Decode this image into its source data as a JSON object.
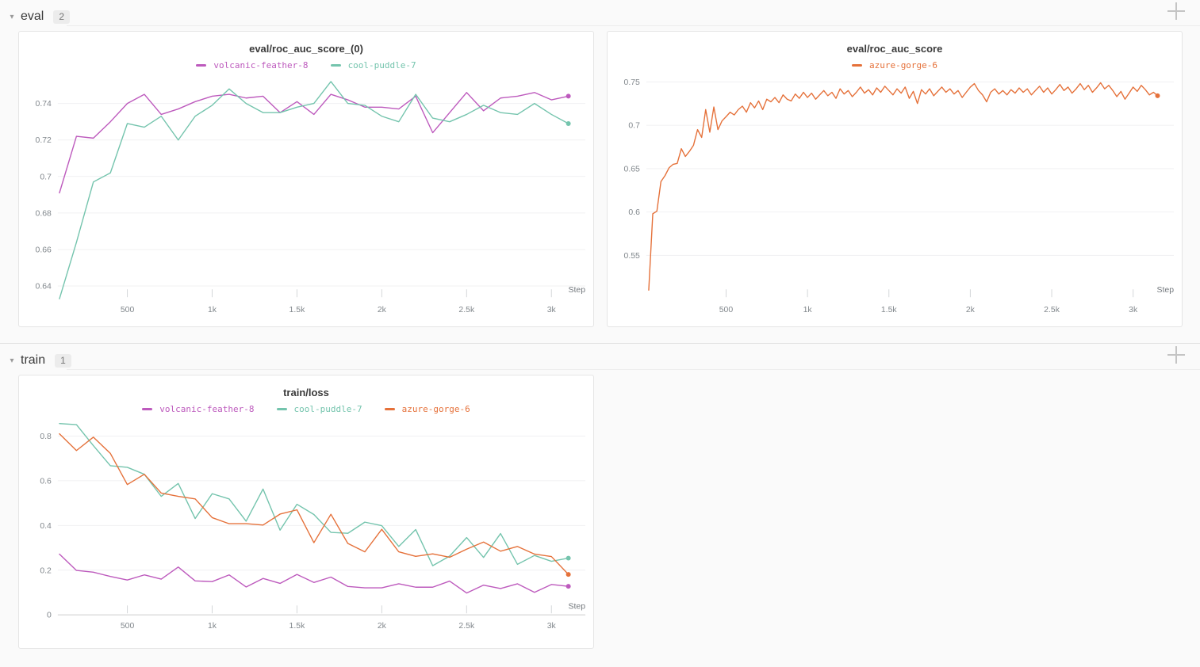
{
  "page": {
    "background": "#fafafa"
  },
  "sections": [
    {
      "id": "eval",
      "label": "eval",
      "count": "2",
      "chevron_icon": "chevron-down",
      "add_icon": "plus"
    },
    {
      "id": "train",
      "label": "train",
      "count": "1",
      "chevron_icon": "chevron-down",
      "add_icon": "plus"
    }
  ],
  "colors": {
    "volcanic_feather_8": "#bd5abd",
    "cool_puddle_7": "#74c4ad",
    "azure_gorge_6": "#e5713a",
    "grid": "#f1f1f2",
    "zero_line": "#dedede",
    "tick": "#d4d7d9",
    "axis_text": "#81878c"
  },
  "chart_data": [
    {
      "type": "line",
      "section": "eval",
      "title": "eval/roc_auc_score_(0)",
      "xlabel": "Step",
      "grid": "horizontal",
      "legend_position": "top",
      "x_axis": {
        "lim": [
          90,
          3200
        ],
        "ticks": [
          500,
          1000,
          1500,
          2000,
          2500,
          3000
        ],
        "tick_labels": [
          "500",
          "1k",
          "1.5k",
          "2k",
          "2.5k",
          "3k"
        ]
      },
      "y_axis": {
        "lim": [
          0.633,
          0.753
        ],
        "ticks": [
          0.64,
          0.66,
          0.68,
          0.7,
          0.72,
          0.74
        ],
        "tick_labels": [
          "0.64",
          "0.66",
          "0.68",
          "0.7",
          "0.72",
          "0.74"
        ]
      },
      "x": [
        100,
        200,
        300,
        400,
        500,
        600,
        700,
        800,
        900,
        1000,
        1100,
        1200,
        1300,
        1400,
        1500,
        1600,
        1700,
        1800,
        1900,
        2000,
        2100,
        2200,
        2300,
        2400,
        2500,
        2600,
        2700,
        2800,
        2900,
        3000,
        3100
      ],
      "series": [
        {
          "name": "volcanic-feather-8",
          "color": "#bd5abd",
          "values": [
            0.691,
            0.722,
            0.721,
            0.73,
            0.74,
            0.745,
            0.734,
            0.737,
            0.741,
            0.744,
            0.745,
            0.743,
            0.744,
            0.735,
            0.741,
            0.734,
            0.745,
            0.742,
            0.738,
            0.738,
            0.737,
            0.744,
            0.724,
            0.735,
            0.746,
            0.736,
            0.743,
            0.744,
            0.746,
            0.742,
            0.744
          ]
        },
        {
          "name": "cool-puddle-7",
          "color": "#74c4ad",
          "values": [
            0.633,
            0.664,
            0.697,
            0.702,
            0.729,
            0.727,
            0.733,
            0.72,
            0.733,
            0.739,
            0.748,
            0.74,
            0.735,
            0.735,
            0.738,
            0.74,
            0.752,
            0.74,
            0.739,
            0.733,
            0.73,
            0.745,
            0.732,
            0.73,
            0.734,
            0.739,
            0.735,
            0.734,
            0.74,
            0.734,
            0.729
          ]
        }
      ]
    },
    {
      "type": "line",
      "section": "eval",
      "title": "eval/roc_auc_score",
      "xlabel": "Step",
      "grid": "horizontal",
      "legend_position": "top",
      "x_axis": {
        "lim": [
          10,
          3250
        ],
        "ticks": [
          500,
          1000,
          1500,
          2000,
          2500,
          3000
        ],
        "tick_labels": [
          "500",
          "1k",
          "1.5k",
          "2k",
          "2.5k",
          "3k"
        ]
      },
      "y_axis": {
        "lim": [
          0.5,
          0.757
        ],
        "ticks": [
          0.55,
          0.6,
          0.65,
          0.7,
          0.75
        ],
        "tick_labels": [
          "0.55",
          "0.6",
          "0.65",
          "0.7",
          "0.75"
        ]
      },
      "x": [
        25,
        50,
        75,
        100,
        125,
        150,
        175,
        200,
        225,
        250,
        275,
        300,
        325,
        350,
        375,
        400,
        425,
        450,
        475,
        500,
        525,
        550,
        575,
        600,
        625,
        650,
        675,
        700,
        725,
        750,
        775,
        800,
        825,
        850,
        875,
        900,
        925,
        950,
        975,
        1000,
        1025,
        1050,
        1075,
        1100,
        1125,
        1150,
        1175,
        1200,
        1225,
        1250,
        1275,
        1300,
        1325,
        1350,
        1375,
        1400,
        1425,
        1450,
        1475,
        1500,
        1525,
        1550,
        1575,
        1600,
        1625,
        1650,
        1675,
        1700,
        1725,
        1750,
        1775,
        1800,
        1825,
        1850,
        1875,
        1900,
        1925,
        1950,
        1975,
        2000,
        2025,
        2050,
        2075,
        2100,
        2125,
        2150,
        2175,
        2200,
        2225,
        2250,
        2275,
        2300,
        2325,
        2350,
        2375,
        2400,
        2425,
        2450,
        2475,
        2500,
        2525,
        2550,
        2575,
        2600,
        2625,
        2650,
        2675,
        2700,
        2725,
        2750,
        2775,
        2800,
        2825,
        2850,
        2875,
        2900,
        2925,
        2950,
        2975,
        3000,
        3025,
        3050,
        3075,
        3100,
        3125,
        3150
      ],
      "series": [
        {
          "name": "azure-gorge-6",
          "color": "#e5713a",
          "values": [
            0.51,
            0.598,
            0.601,
            0.635,
            0.642,
            0.651,
            0.655,
            0.656,
            0.673,
            0.664,
            0.67,
            0.677,
            0.695,
            0.686,
            0.718,
            0.692,
            0.721,
            0.695,
            0.705,
            0.71,
            0.715,
            0.712,
            0.718,
            0.722,
            0.715,
            0.726,
            0.72,
            0.728,
            0.718,
            0.73,
            0.727,
            0.732,
            0.726,
            0.735,
            0.73,
            0.728,
            0.736,
            0.731,
            0.738,
            0.732,
            0.737,
            0.73,
            0.735,
            0.74,
            0.734,
            0.738,
            0.731,
            0.742,
            0.736,
            0.74,
            0.733,
            0.738,
            0.744,
            0.737,
            0.741,
            0.735,
            0.743,
            0.738,
            0.745,
            0.74,
            0.735,
            0.742,
            0.737,
            0.744,
            0.731,
            0.739,
            0.725,
            0.741,
            0.736,
            0.742,
            0.734,
            0.739,
            0.744,
            0.738,
            0.742,
            0.736,
            0.74,
            0.732,
            0.738,
            0.744,
            0.748,
            0.74,
            0.735,
            0.727,
            0.738,
            0.742,
            0.736,
            0.74,
            0.735,
            0.741,
            0.737,
            0.743,
            0.738,
            0.742,
            0.735,
            0.74,
            0.745,
            0.738,
            0.743,
            0.736,
            0.741,
            0.747,
            0.74,
            0.744,
            0.737,
            0.742,
            0.748,
            0.741,
            0.746,
            0.738,
            0.743,
            0.749,
            0.742,
            0.746,
            0.74,
            0.733,
            0.739,
            0.73,
            0.737,
            0.744,
            0.739,
            0.746,
            0.741,
            0.735,
            0.738,
            0.734
          ]
        }
      ]
    },
    {
      "type": "line",
      "section": "train",
      "title": "train/loss",
      "xlabel": "Step",
      "grid": "horizontal",
      "legend_position": "top",
      "x_axis": {
        "lim": [
          90,
          3200
        ],
        "ticks": [
          500,
          1000,
          1500,
          2000,
          2500,
          3000
        ],
        "tick_labels": [
          "500",
          "1k",
          "1.5k",
          "2k",
          "2.5k",
          "3k"
        ]
      },
      "y_axis": {
        "lim": [
          0,
          0.863
        ],
        "ticks": [
          0,
          0.2,
          0.4,
          0.6,
          0.8
        ],
        "tick_labels": [
          "0",
          "0.2",
          "0.4",
          "0.6",
          "0.8"
        ]
      },
      "x": [
        100,
        200,
        300,
        400,
        500,
        600,
        700,
        800,
        900,
        1000,
        1100,
        1200,
        1300,
        1400,
        1500,
        1600,
        1700,
        1800,
        1900,
        2000,
        2100,
        2200,
        2300,
        2400,
        2500,
        2600,
        2700,
        2800,
        2900,
        3000,
        3100
      ],
      "series": [
        {
          "name": "volcanic-feather-8",
          "color": "#bd5abd",
          "values": [
            0.272,
            0.199,
            0.191,
            0.172,
            0.156,
            0.179,
            0.16,
            0.214,
            0.152,
            0.149,
            0.179,
            0.125,
            0.163,
            0.141,
            0.181,
            0.145,
            0.169,
            0.127,
            0.121,
            0.121,
            0.139,
            0.124,
            0.124,
            0.151,
            0.098,
            0.133,
            0.118,
            0.139,
            0.101,
            0.136,
            0.128
          ]
        },
        {
          "name": "cool-puddle-7",
          "color": "#74c4ad",
          "values": [
            0.856,
            0.851,
            0.757,
            0.667,
            0.66,
            0.629,
            0.53,
            0.588,
            0.431,
            0.542,
            0.519,
            0.419,
            0.563,
            0.379,
            0.495,
            0.449,
            0.369,
            0.365,
            0.415,
            0.399,
            0.306,
            0.382,
            0.22,
            0.263,
            0.346,
            0.257,
            0.364,
            0.226,
            0.266,
            0.24,
            0.254
          ]
        },
        {
          "name": "azure-gorge-6",
          "color": "#e5713a",
          "values": [
            0.81,
            0.735,
            0.795,
            0.722,
            0.583,
            0.629,
            0.545,
            0.53,
            0.519,
            0.435,
            0.408,
            0.408,
            0.402,
            0.451,
            0.47,
            0.323,
            0.45,
            0.32,
            0.282,
            0.383,
            0.282,
            0.262,
            0.273,
            0.258,
            0.294,
            0.326,
            0.285,
            0.306,
            0.272,
            0.261,
            0.181
          ]
        }
      ]
    }
  ]
}
